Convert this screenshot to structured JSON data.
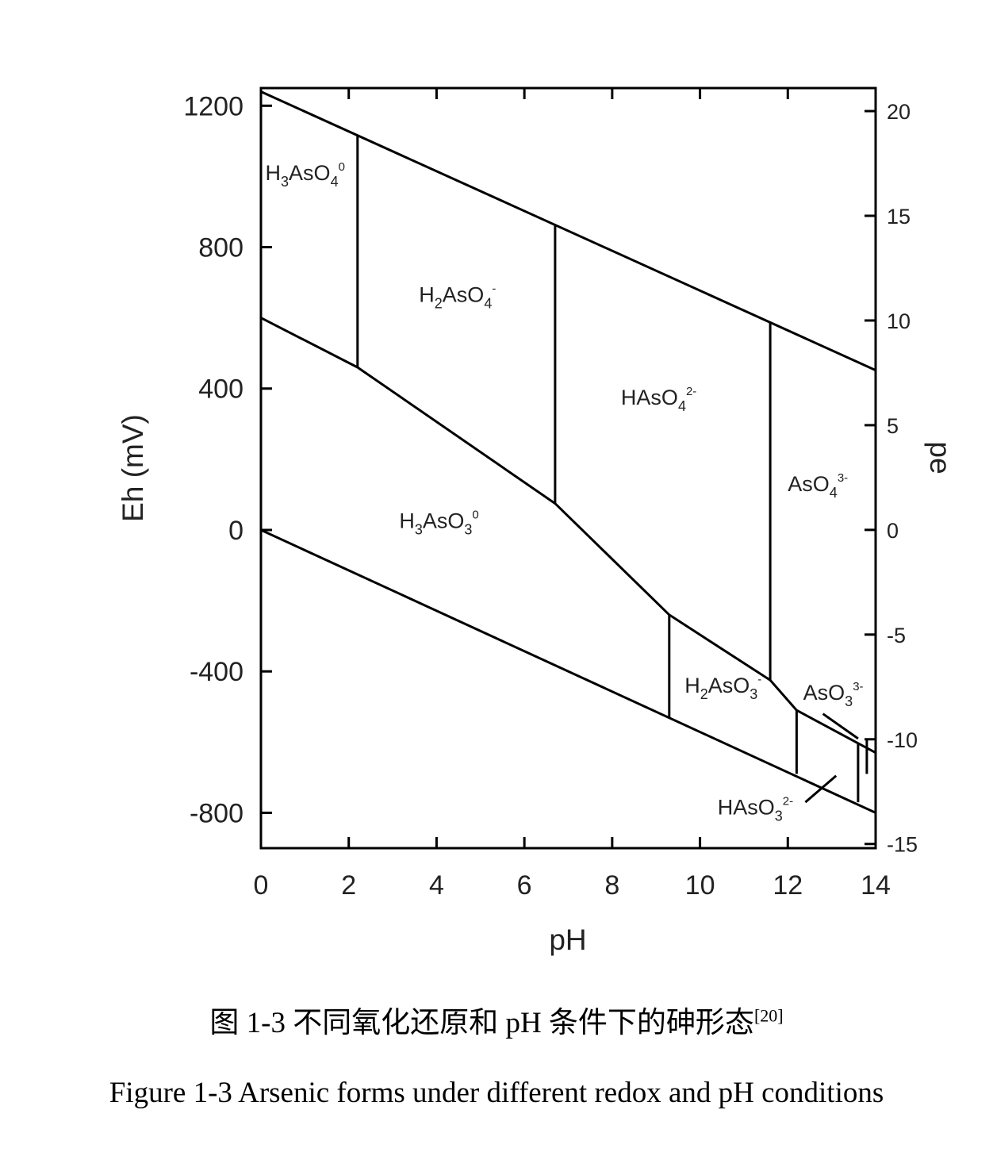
{
  "chart_data": {
    "type": "line",
    "xlabel": "pH",
    "ylabel": "Eh (mV)",
    "y2label": "pe",
    "xlim": [
      0,
      14
    ],
    "ylim": [
      -900,
      1250
    ],
    "y2lim": [
      -15.2,
      21.1
    ],
    "x_ticks": [
      "0",
      "2",
      "4",
      "6",
      "8",
      "10",
      "12",
      "14"
    ],
    "y_ticks": [
      "1200",
      "800",
      "400",
      "0",
      "-400",
      "-800"
    ],
    "y2_ticks": [
      "20",
      "15",
      "10",
      "5",
      "0",
      "-5",
      "-10",
      "-15"
    ],
    "lines": [
      {
        "name": "water-upper",
        "points": [
          [
            0,
            1240
          ],
          [
            14,
            452
          ]
        ]
      },
      {
        "name": "water-lower",
        "points": [
          [
            0,
            0
          ],
          [
            14,
            -800
          ]
        ]
      },
      {
        "name": "arsenate-arsenite",
        "points": [
          [
            0,
            600
          ],
          [
            2.2,
            460
          ],
          [
            6.7,
            75
          ],
          [
            9.3,
            -240
          ],
          [
            11.6,
            -425
          ],
          [
            12.2,
            -510
          ],
          [
            14,
            -630
          ]
        ]
      },
      {
        "name": "boundary-pH2.2",
        "points": [
          [
            2.2,
            460
          ],
          [
            2.2,
            1118
          ]
        ]
      },
      {
        "name": "boundary-pH6.7",
        "points": [
          [
            6.7,
            75
          ],
          [
            6.7,
            865
          ]
        ]
      },
      {
        "name": "boundary-pH11.6",
        "points": [
          [
            11.6,
            -425
          ],
          [
            11.6,
            588
          ]
        ]
      },
      {
        "name": "boundary-pH9.3",
        "points": [
          [
            9.3,
            -240
          ],
          [
            9.3,
            -530
          ]
        ]
      },
      {
        "name": "boundary-pH12.2",
        "points": [
          [
            12.2,
            -510
          ],
          [
            12.2,
            -690
          ]
        ]
      },
      {
        "name": "boundary-pH13.6",
        "points": [
          [
            13.6,
            -605
          ],
          [
            13.6,
            -770
          ]
        ]
      },
      {
        "name": "leader-AsO3",
        "points": [
          [
            12.8,
            -520
          ],
          [
            13.6,
            -590
          ]
        ]
      },
      {
        "name": "leader-AsO3-stem",
        "points": [
          [
            13.8,
            -590
          ],
          [
            13.8,
            -690
          ]
        ]
      },
      {
        "name": "leader-HAsO3",
        "points": [
          [
            12.4,
            -770
          ],
          [
            13.1,
            -695
          ]
        ]
      }
    ],
    "species": [
      {
        "base": "H",
        "sub1": "3",
        "mid": "AsO",
        "sub2": "4",
        "sup": "0",
        "x": 0.1,
        "y": 990
      },
      {
        "base": "H",
        "sub1": "2",
        "mid": "AsO",
        "sub2": "4",
        "sup": "-",
        "x": 3.6,
        "y": 645
      },
      {
        "base": "HAsO",
        "sub1": "",
        "mid": "",
        "sub2": "4",
        "sup": "2-",
        "x": 8.2,
        "y": 355
      },
      {
        "base": "AsO",
        "sub1": "",
        "mid": "",
        "sub2": "4",
        "sup": "3-",
        "x": 12.0,
        "y": 110
      },
      {
        "base": "H",
        "sub1": "3",
        "mid": "AsO",
        "sub2": "3",
        "sup": "0",
        "x": 3.15,
        "y": 5
      },
      {
        "base": "H",
        "sub1": "2",
        "mid": "AsO",
        "sub2": "3",
        "sup": "-",
        "x": 9.65,
        "y": -460
      },
      {
        "base": "AsO",
        "sub1": "",
        "mid": "",
        "sub2": "3",
        "sup": "3-",
        "x": 12.35,
        "y": -480
      },
      {
        "base": "HAsO",
        "sub1": "",
        "mid": "",
        "sub2": "3",
        "sup": "2-",
        "x": 10.4,
        "y": -805
      }
    ]
  },
  "caption": {
    "cn_main": "图 1-3  不同氧化还原和 pH 条件下的砷形态",
    "cn_ref": "[20]",
    "en": "Figure 1-3 Arsenic forms under different redox and pH conditions"
  }
}
